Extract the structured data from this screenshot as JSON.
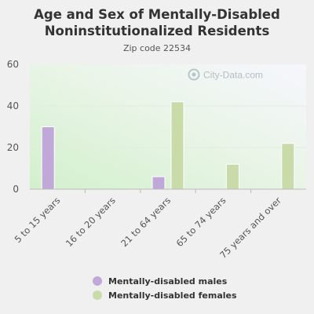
{
  "chart_data": {
    "type": "bar",
    "title": "Age and Sex of Mentally-Disabled Noninstitutionalized Residents",
    "subtitle": "Zip code 22534",
    "categories": [
      "5 to 15 years",
      "16 to 20 years",
      "21 to 64 years",
      "65 to 74 years",
      "75 years and over"
    ],
    "series": [
      {
        "name": "Mentally-disabled males",
        "values": [
          30,
          0,
          6,
          0,
          0
        ],
        "color": "#c0a8d8"
      },
      {
        "name": "Mentally-disabled females",
        "values": [
          0,
          0,
          42,
          12,
          22
        ],
        "color": "#c8dba8"
      }
    ],
    "ylim": [
      0,
      60
    ],
    "yticks": [
      0,
      20,
      40,
      60
    ],
    "xlabel": "",
    "ylabel": "",
    "grid": true,
    "legend": "bottom"
  },
  "watermark": "City-Data.com"
}
